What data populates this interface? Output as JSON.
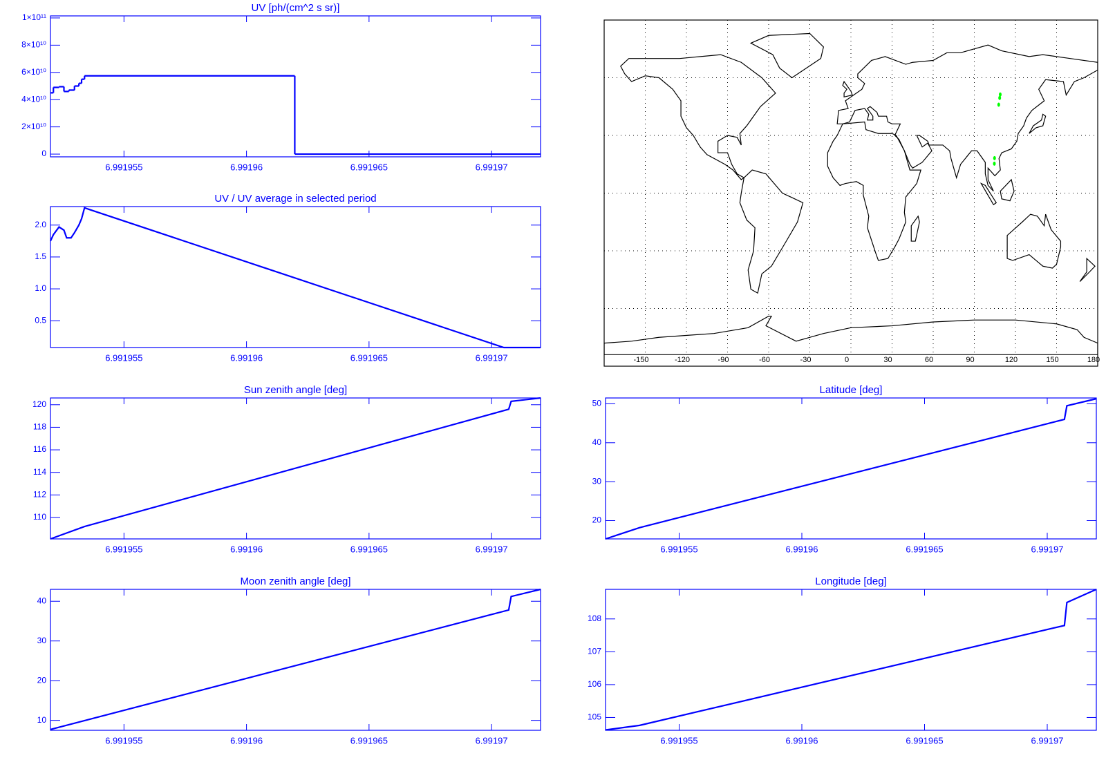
{
  "chart_data": [
    {
      "type": "line",
      "step": true,
      "title": "UV [ph/(cm^2 s sr)]",
      "color": "#0000ff",
      "x": [
        6.991952,
        6.99195212,
        6.99195235,
        6.99195255,
        6.99195275,
        6.99195298,
        6.99195316,
        6.99195327,
        6.99195339,
        6.99196197,
        6.991972
      ],
      "values": [
        45000000000,
        49000000000,
        49500000000,
        46000000000,
        47000000000,
        50000000000,
        52000000000,
        55000000000,
        57500000000,
        0,
        0
      ],
      "xlim": [
        6.991952,
        6.991972
      ],
      "xticks": [
        6.991955,
        6.99196,
        6.991965,
        6.99197
      ],
      "ylim": [
        -2000000000,
        101500000000
      ],
      "yticks": [
        0,
        {
          "value": 20000000000,
          "label": "2×10¹⁰"
        },
        {
          "value": 40000000000,
          "label": "4×10¹⁰"
        },
        {
          "value": 60000000000,
          "label": "6×10¹⁰"
        },
        {
          "value": 80000000000,
          "label": "8×10¹⁰"
        },
        {
          "value": 100000000000,
          "label": "1×10¹¹"
        }
      ]
    },
    {
      "type": "line",
      "title": "UV / UV average in selected period",
      "color": "#0000ff",
      "x": [
        6.991952,
        6.99195212,
        6.99195235,
        6.99195255,
        6.99195266,
        6.99195284,
        6.99195298,
        6.99195316,
        6.99195327,
        6.99195339,
        6.9919705,
        6.991972
      ],
      "values": [
        1.75,
        1.85,
        1.97,
        1.92,
        1.8,
        1.8,
        1.88,
        2.0,
        2.1,
        2.27,
        0.08,
        0.08
      ],
      "xlim": [
        6.991952,
        6.991972
      ],
      "xticks": [
        6.991955,
        6.99196,
        6.991965,
        6.99197
      ],
      "ylim": [
        0.08,
        2.29
      ],
      "yticks": [
        0.5,
        {
          "value": 1,
          "label": "1.0"
        },
        1.5,
        {
          "value": 2,
          "label": "2.0"
        }
      ]
    },
    {
      "type": "map",
      "color": "#000000",
      "xlim": [
        -180,
        180
      ],
      "xticks": [
        -150,
        -120,
        -90,
        -60,
        -30,
        0,
        30,
        60,
        90,
        120,
        150,
        180
      ],
      "ylim": [
        -90,
        90
      ],
      "ygrid": [
        -60,
        -30,
        0,
        30,
        60
      ],
      "points": {
        "color": "#00ff00",
        "lon": [
          104.62,
          104.76,
          107.8,
          108.5,
          108.9
        ],
        "lat": [
          15.3,
          18.2,
          46,
          49.5,
          51.3
        ]
      }
    },
    {
      "type": "line",
      "title": "Sun zenith angle [deg]",
      "color": "#0000ff",
      "x": [
        6.991952,
        6.99195339,
        6.9919707,
        6.9919708,
        6.991972
      ],
      "values": [
        108.1,
        109.2,
        119.6,
        120.3,
        120.6
      ],
      "xlim": [
        6.991952,
        6.991972
      ],
      "xticks": [
        6.991955,
        6.99196,
        6.991965,
        6.99197
      ],
      "ylim": [
        108.1,
        120.6
      ],
      "yticks": [
        110,
        112,
        114,
        116,
        118,
        120
      ]
    },
    {
      "type": "line",
      "title": "Latitude [deg]",
      "color": "#0000ff",
      "x": [
        6.991952,
        6.99195339,
        6.9919707,
        6.9919708,
        6.991972
      ],
      "values": [
        15.3,
        18.2,
        46,
        49.5,
        51.3
      ],
      "xlim": [
        6.991952,
        6.991972
      ],
      "xticks": [
        6.991955,
        6.99196,
        6.991965,
        6.99197
      ],
      "ylim": [
        15.3,
        51.5
      ],
      "yticks": [
        20,
        30,
        40,
        50
      ]
    },
    {
      "type": "line",
      "title": "Moon zenith angle [deg]",
      "color": "#0000ff",
      "x": [
        6.991952,
        6.9919707,
        6.9919708,
        6.991972
      ],
      "values": [
        7.7,
        37.8,
        41.2,
        43
      ],
      "xlim": [
        6.991952,
        6.991972
      ],
      "xticks": [
        6.991955,
        6.99196,
        6.991965,
        6.99197
      ],
      "ylim": [
        7.5,
        43
      ],
      "yticks": [
        10,
        20,
        30,
        40
      ]
    },
    {
      "type": "line",
      "title": "Longitude [deg]",
      "color": "#0000ff",
      "x": [
        6.991952,
        6.99195339,
        6.9919707,
        6.9919708,
        6.991972
      ],
      "values": [
        104.62,
        104.76,
        107.8,
        108.5,
        108.9
      ],
      "xlim": [
        6.991952,
        6.991972
      ],
      "xticks": [
        6.991955,
        6.99196,
        6.991965,
        6.99197
      ],
      "ylim": [
        104.61,
        108.9
      ],
      "yticks": [
        105,
        106,
        107,
        108
      ]
    }
  ]
}
